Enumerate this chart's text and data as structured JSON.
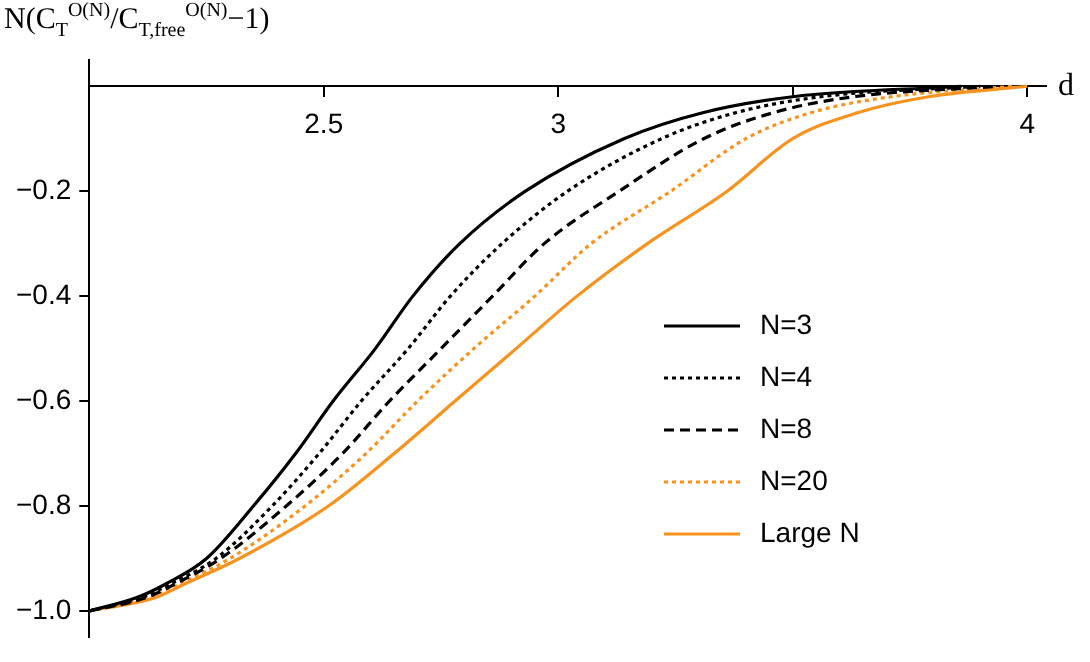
{
  "chart_data": {
    "type": "line",
    "ylabel": "N(C$_{T}$$^{O(N)}$/C$_{T,free}$$^{O(N)}$−1)",
    "xlabel": "d",
    "xlim": [
      2.0,
      4.04
    ],
    "xticks": [
      {
        "value": 2.5,
        "label": "2.5"
      },
      3,
      {
        "value": 3.5,
        "label": null
      },
      4
    ],
    "ylim": [
      -1.05,
      0.05
    ],
    "yticks": [
      {
        "value": -1.0,
        "label": "−1.0"
      },
      {
        "value": -0.8,
        "label": "−0.8"
      },
      {
        "value": -0.6,
        "label": "−0.6"
      },
      {
        "value": -0.4,
        "label": "−0.4"
      },
      {
        "value": -0.2,
        "label": "−0.2"
      }
    ],
    "legend": "right",
    "marker": "none",
    "series": [
      {
        "name": "N=3",
        "color": "#000000",
        "line_style": "solid",
        "x": [
          2.0,
          2.1,
          2.16,
          2.25,
          2.35,
          2.44,
          2.52,
          2.61,
          2.69,
          2.79,
          2.93,
          3.14,
          3.31,
          3.5,
          3.86
        ],
        "values": [
          -1,
          -0.975,
          -0.95,
          -0.9,
          -0.8,
          -0.7,
          -0.6,
          -0.5,
          -0.4,
          -0.3,
          -0.2,
          -0.1,
          -0.05,
          -0.02,
          0
        ]
      },
      {
        "name": "N=4",
        "color": "#000000",
        "line_style": "dotted",
        "x": [
          2.0,
          2.11,
          2.17,
          2.27,
          2.39,
          2.49,
          2.58,
          2.68,
          2.77,
          2.88,
          3.02,
          3.22,
          3.38,
          3.56,
          3.9
        ],
        "values": [
          -1,
          -0.975,
          -0.95,
          -0.9,
          -0.8,
          -0.7,
          -0.6,
          -0.5,
          -0.4,
          -0.3,
          -0.2,
          -0.1,
          -0.05,
          -0.02,
          0
        ]
      },
      {
        "name": "N=8",
        "color": "#000000",
        "line_style": "dashed",
        "x": [
          2.0,
          2.12,
          2.18,
          2.28,
          2.42,
          2.54,
          2.64,
          2.75,
          2.86,
          2.97,
          3.13,
          3.31,
          3.46,
          3.63,
          3.94
        ],
        "values": [
          -1,
          -0.975,
          -0.95,
          -0.9,
          -0.8,
          -0.7,
          -0.6,
          -0.5,
          -0.4,
          -0.3,
          -0.2,
          -0.1,
          -0.05,
          -0.02,
          0
        ]
      },
      {
        "name": "N=20",
        "color": "#f7931e",
        "line_style": "dotted",
        "x": [
          2.0,
          2.13,
          2.19,
          2.3,
          2.46,
          2.59,
          2.7,
          2.82,
          2.95,
          3.07,
          3.24,
          3.4,
          3.54,
          3.71,
          3.97
        ],
        "values": [
          -1,
          -0.975,
          -0.95,
          -0.9,
          -0.8,
          -0.7,
          -0.6,
          -0.5,
          -0.4,
          -0.3,
          -0.2,
          -0.1,
          -0.05,
          -0.02,
          0
        ]
      },
      {
        "name": "Large N",
        "color": "#f7931e",
        "line_style": "solid",
        "x": [
          2.0,
          2.14,
          2.2,
          2.32,
          2.51,
          2.65,
          2.78,
          2.91,
          3.04,
          3.19,
          3.36,
          3.5,
          3.64,
          3.79,
          4.0
        ],
        "values": [
          -1,
          -0.975,
          -0.95,
          -0.9,
          -0.8,
          -0.7,
          -0.6,
          -0.5,
          -0.4,
          -0.3,
          -0.2,
          -0.1,
          -0.05,
          -0.02,
          0
        ]
      }
    ]
  }
}
